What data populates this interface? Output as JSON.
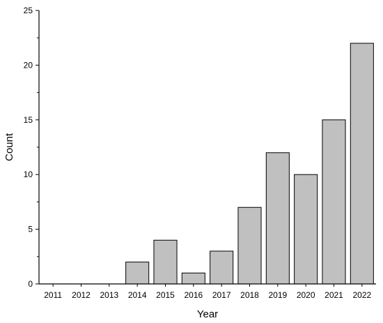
{
  "chart_data": {
    "type": "bar",
    "categories": [
      "2011",
      "2012",
      "2013",
      "2014",
      "2015",
      "2016",
      "2017",
      "2018",
      "2019",
      "2020",
      "2021",
      "2022"
    ],
    "values": [
      0,
      0,
      0,
      2,
      4,
      1,
      3,
      7,
      12,
      10,
      15,
      22
    ],
    "xlabel": "Year",
    "ylabel": "Count",
    "ylim": [
      0,
      25
    ],
    "yticks": [
      "0",
      "5",
      "10",
      "15",
      "20",
      "25"
    ],
    "grid": false,
    "legend": "none",
    "colors": {
      "bar_fill": "#c0c0c0",
      "bar_stroke": "#000000",
      "axis": "#000000",
      "text": "#000000"
    }
  }
}
